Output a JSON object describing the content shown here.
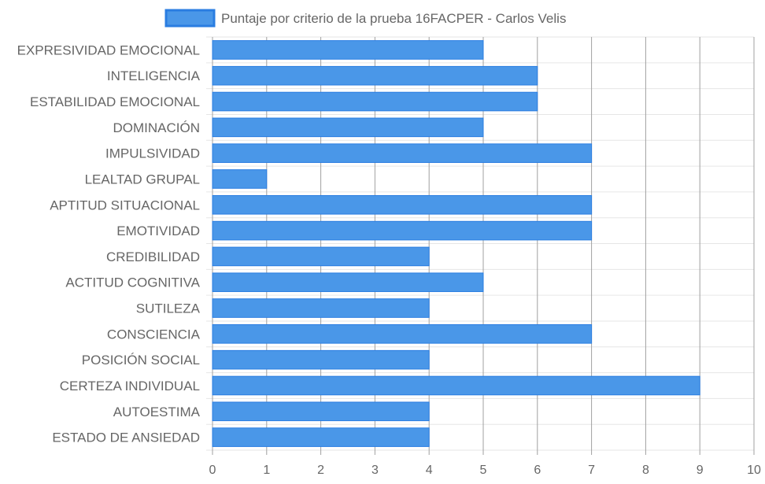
{
  "chart_data": {
    "type": "bar",
    "orientation": "horizontal",
    "legend": {
      "position": "top",
      "entries": [
        "Puntaje por criterio de la prueba 16FACPER - Carlos Velis"
      ]
    },
    "categories": [
      "EXPRESIVIDAD EMOCIONAL",
      "INTELIGENCIA",
      "ESTABILIDAD EMOCIONAL",
      "DOMINACIÓN",
      "IMPULSIVIDAD",
      "LEALTAD GRUPAL",
      "APTITUD SITUACIONAL",
      "EMOTIVIDAD",
      "CREDIBILIDAD",
      "ACTITUD COGNITIVA",
      "SUTILEZA",
      "CONSCIENCIA",
      "POSICIÓN SOCIAL",
      "CERTEZA INDIVIDUAL",
      "AUTOESTIMA",
      "ESTADO DE ANSIEDAD"
    ],
    "series": [
      {
        "name": "Puntaje por criterio de la prueba 16FACPER - Carlos Velis",
        "values": [
          5,
          6,
          6,
          5,
          7,
          1,
          7,
          7,
          4,
          5,
          4,
          7,
          4,
          9,
          4,
          4
        ],
        "color": "#4a97e8",
        "border_color": "#2a7de1"
      }
    ],
    "xlim": [
      0,
      10
    ],
    "x_ticks": [
      "0",
      "1",
      "2",
      "3",
      "4",
      "5",
      "6",
      "7",
      "8",
      "9",
      "10"
    ],
    "grid": true,
    "grid_color_vertical": "#a0a0a0",
    "grid_color_horizontal": "#e6e6e6"
  }
}
